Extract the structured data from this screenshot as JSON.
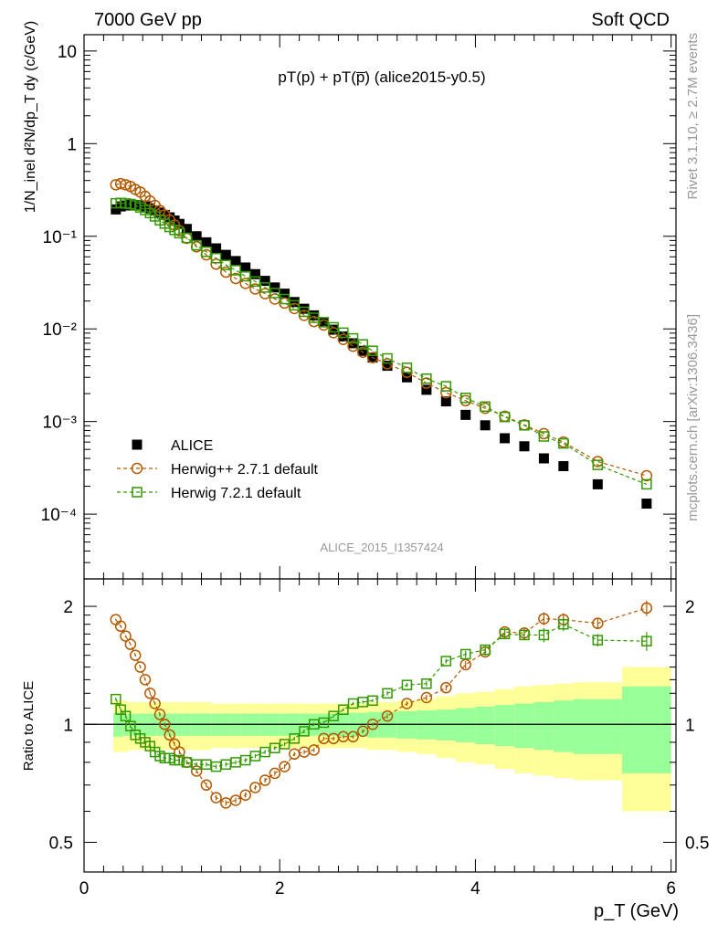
{
  "header": {
    "left": "7000 GeV pp",
    "right": "Soft QCD",
    "side_top": "Rivet 3.1.10, ≥ 2.7M events",
    "side_bottom": "mcplots.cern.ch [arXiv:1306.3436]"
  },
  "chart_data": [
    {
      "type": "scatter",
      "title": "pT(p) + pT(p̅) (alice2015-y0.5)",
      "watermark": "ALICE_2015_I1357424",
      "ylabel": "1/N_inel d²N/dp_T dy (c/GeV)",
      "yscale": "log",
      "ylim": [
        2e-05,
        15
      ],
      "xlim": [
        0,
        6.05
      ],
      "ytick_labels": [
        "10",
        "1",
        "10⁻¹",
        "10⁻²",
        "10⁻³",
        "10⁻⁴"
      ],
      "legend": "inside lower-left",
      "x": [
        0.325,
        0.375,
        0.425,
        0.475,
        0.525,
        0.575,
        0.625,
        0.675,
        0.725,
        0.775,
        0.825,
        0.875,
        0.925,
        0.975,
        1.05,
        1.15,
        1.25,
        1.35,
        1.45,
        1.55,
        1.65,
        1.75,
        1.85,
        1.95,
        2.05,
        2.15,
        2.25,
        2.35,
        2.45,
        2.55,
        2.65,
        2.75,
        2.85,
        2.95,
        3.1,
        3.3,
        3.5,
        3.7,
        3.9,
        4.1,
        4.3,
        4.5,
        4.7,
        4.9,
        5.25,
        5.75
      ],
      "series": [
        {
          "name": "ALICE",
          "color": "#000000",
          "marker": "filled-square",
          "values": [
            0.195,
            0.21,
            0.215,
            0.218,
            0.218,
            0.215,
            0.21,
            0.2,
            0.19,
            0.18,
            0.17,
            0.16,
            0.148,
            0.136,
            0.12,
            0.1,
            0.086,
            0.074,
            0.063,
            0.054,
            0.046,
            0.039,
            0.033,
            0.028,
            0.024,
            0.0195,
            0.0165,
            0.014,
            0.0118,
            0.0098,
            0.0083,
            0.007,
            0.0058,
            0.0049,
            0.004,
            0.003,
            0.0022,
            0.00165,
            0.00118,
            0.00091,
            0.00066,
            0.00054,
            0.0004,
            0.00033,
            0.00021,
            0.00013
          ]
        },
        {
          "name": "Herwig++ 2.7.1 default",
          "color": "#b35900",
          "marker": "open-circle",
          "values": [
            0.36,
            0.37,
            0.36,
            0.345,
            0.32,
            0.3,
            0.27,
            0.24,
            0.215,
            0.19,
            0.17,
            0.15,
            0.132,
            0.115,
            0.095,
            0.077,
            0.063,
            0.05,
            0.041,
            0.035,
            0.031,
            0.027,
            0.024,
            0.021,
            0.019,
            0.0166,
            0.014,
            0.012,
            0.011,
            0.0091,
            0.0077,
            0.0065,
            0.0056,
            0.0049,
            0.0042,
            0.0034,
            0.0026,
            0.00205,
            0.00168,
            0.00139,
            0.00114,
            0.00092,
            0.00074,
            0.0006,
            0.00037,
            0.00026
          ]
        },
        {
          "name": "Herwig 7.2.1 default",
          "color": "#339900",
          "marker": "open-square",
          "values": [
            0.227,
            0.229,
            0.226,
            0.223,
            0.215,
            0.205,
            0.192,
            0.178,
            0.164,
            0.149,
            0.137,
            0.126,
            0.117,
            0.108,
            0.096,
            0.08,
            0.068,
            0.058,
            0.049,
            0.043,
            0.037,
            0.0325,
            0.028,
            0.0244,
            0.021,
            0.018,
            0.0153,
            0.0132,
            0.0118,
            0.0104,
            0.0091,
            0.0079,
            0.0068,
            0.0058,
            0.0048,
            0.0038,
            0.0029,
            0.0024,
            0.0018,
            0.00145,
            0.00112,
            0.00091,
            0.00069,
            0.00058,
            0.00034,
            0.00021
          ]
        }
      ]
    },
    {
      "type": "scatter",
      "ylabel": "Ratio to ALICE",
      "xlabel": "p_T (GeV)",
      "xlim": [
        0,
        6.05
      ],
      "ylim": [
        0.42,
        2.35
      ],
      "ytick_labels": [
        "2",
        "1",
        "0.5"
      ],
      "xtick_labels": [
        "0",
        "2",
        "4",
        "6"
      ],
      "reference": 1,
      "band_edges": [
        0.3,
        0.35,
        0.4,
        0.45,
        0.5,
        0.55,
        0.6,
        0.65,
        0.7,
        0.75,
        0.8,
        0.85,
        0.9,
        0.95,
        1.0,
        1.1,
        1.2,
        1.3,
        1.4,
        1.5,
        1.6,
        1.7,
        1.8,
        1.9,
        2.0,
        2.1,
        2.2,
        2.3,
        2.4,
        2.5,
        2.6,
        2.7,
        2.8,
        2.9,
        3.0,
        3.2,
        3.4,
        3.6,
        3.8,
        4.0,
        4.2,
        4.4,
        4.6,
        4.8,
        5.0,
        5.5,
        6.0
      ],
      "band_inner_frac": [
        0.07,
        0.07,
        0.065,
        0.065,
        0.065,
        0.065,
        0.065,
        0.065,
        0.065,
        0.065,
        0.065,
        0.065,
        0.065,
        0.065,
        0.065,
        0.065,
        0.065,
        0.065,
        0.065,
        0.065,
        0.065,
        0.065,
        0.065,
        0.065,
        0.065,
        0.065,
        0.065,
        0.065,
        0.065,
        0.065,
        0.07,
        0.07,
        0.07,
        0.075,
        0.075,
        0.08,
        0.085,
        0.09,
        0.1,
        0.11,
        0.12,
        0.13,
        0.14,
        0.15,
        0.16,
        0.25
      ],
      "band_outer_frac": [
        0.15,
        0.15,
        0.15,
        0.14,
        0.14,
        0.14,
        0.14,
        0.14,
        0.14,
        0.14,
        0.14,
        0.14,
        0.14,
        0.14,
        0.14,
        0.14,
        0.14,
        0.13,
        0.13,
        0.13,
        0.13,
        0.13,
        0.13,
        0.13,
        0.13,
        0.13,
        0.13,
        0.13,
        0.13,
        0.13,
        0.13,
        0.13,
        0.13,
        0.14,
        0.14,
        0.15,
        0.16,
        0.18,
        0.2,
        0.21,
        0.23,
        0.25,
        0.26,
        0.27,
        0.28,
        0.4
      ],
      "band_inner_color": "#99ff99",
      "band_outer_color": "#ffff99",
      "x": [
        0.325,
        0.375,
        0.425,
        0.475,
        0.525,
        0.575,
        0.625,
        0.675,
        0.725,
        0.775,
        0.825,
        0.875,
        0.925,
        0.975,
        1.05,
        1.15,
        1.25,
        1.35,
        1.45,
        1.55,
        1.65,
        1.75,
        1.85,
        1.95,
        2.05,
        2.15,
        2.25,
        2.35,
        2.45,
        2.55,
        2.65,
        2.75,
        2.85,
        2.95,
        3.1,
        3.3,
        3.5,
        3.7,
        3.9,
        4.1,
        4.3,
        4.5,
        4.7,
        4.9,
        5.25,
        5.75
      ],
      "series": [
        {
          "name": "Herwig++ 2.7.1 default",
          "color": "#b35900",
          "marker": "open-circle",
          "values": [
            1.85,
            1.78,
            1.68,
            1.6,
            1.5,
            1.4,
            1.3,
            1.2,
            1.13,
            1.06,
            1.0,
            0.94,
            0.89,
            0.85,
            0.8,
            0.76,
            0.7,
            0.65,
            0.63,
            0.64,
            0.66,
            0.69,
            0.72,
            0.75,
            0.78,
            0.84,
            0.85,
            0.86,
            0.92,
            0.92,
            0.93,
            0.93,
            0.96,
            1.0,
            1.05,
            1.13,
            1.17,
            1.24,
            1.42,
            1.53,
            1.72,
            1.71,
            1.86,
            1.85,
            1.81,
            1.98
          ],
          "errors": [
            0.01,
            0.01,
            0.01,
            0.01,
            0.01,
            0.01,
            0.01,
            0.01,
            0.01,
            0.01,
            0.01,
            0.01,
            0.01,
            0.01,
            0.01,
            0.01,
            0.01,
            0.01,
            0.01,
            0.01,
            0.01,
            0.01,
            0.01,
            0.01,
            0.01,
            0.01,
            0.01,
            0.01,
            0.01,
            0.01,
            0.01,
            0.01,
            0.01,
            0.01,
            0.015,
            0.015,
            0.02,
            0.02,
            0.03,
            0.035,
            0.04,
            0.05,
            0.07,
            0.07,
            0.06,
            0.09
          ]
        },
        {
          "name": "Herwig 7.2.1 default",
          "color": "#339900",
          "marker": "open-square",
          "values": [
            1.16,
            1.09,
            1.05,
            0.99,
            0.94,
            0.92,
            0.9,
            0.88,
            0.85,
            0.83,
            0.82,
            0.82,
            0.81,
            0.81,
            0.8,
            0.79,
            0.79,
            0.78,
            0.79,
            0.8,
            0.81,
            0.83,
            0.85,
            0.87,
            0.89,
            0.92,
            0.96,
            1.0,
            1.01,
            1.05,
            1.09,
            1.13,
            1.14,
            1.15,
            1.2,
            1.26,
            1.27,
            1.45,
            1.51,
            1.55,
            1.7,
            1.69,
            1.69,
            1.8,
            1.64,
            1.63
          ],
          "errors": [
            0.01,
            0.01,
            0.01,
            0.01,
            0.01,
            0.01,
            0.01,
            0.01,
            0.01,
            0.01,
            0.01,
            0.01,
            0.01,
            0.01,
            0.01,
            0.01,
            0.01,
            0.01,
            0.01,
            0.01,
            0.01,
            0.01,
            0.01,
            0.01,
            0.01,
            0.01,
            0.01,
            0.01,
            0.01,
            0.01,
            0.01,
            0.01,
            0.01,
            0.01,
            0.015,
            0.015,
            0.02,
            0.02,
            0.03,
            0.035,
            0.04,
            0.05,
            0.07,
            0.07,
            0.06,
            0.09
          ]
        }
      ]
    }
  ]
}
